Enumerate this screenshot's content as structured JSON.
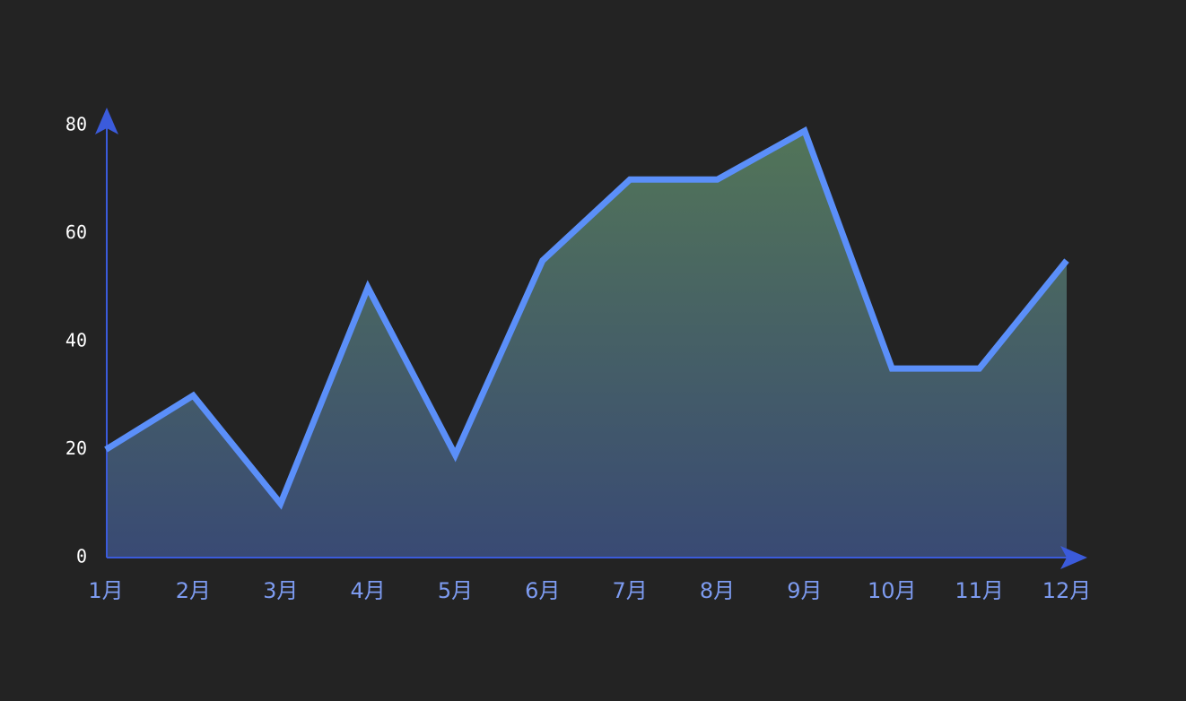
{
  "chart_data": {
    "type": "area",
    "categories": [
      "1月",
      "2月",
      "3月",
      "4月",
      "5月",
      "6月",
      "7月",
      "8月",
      "9月",
      "10月",
      "11月",
      "12月"
    ],
    "values": [
      20,
      30,
      10,
      50,
      19,
      55,
      70,
      70,
      79,
      35,
      35,
      55
    ],
    "color": "#5b8ff9",
    "ylim": [
      0,
      80
    ],
    "yticks": [
      0,
      20,
      40,
      60,
      80
    ],
    "grid": false
  }
}
